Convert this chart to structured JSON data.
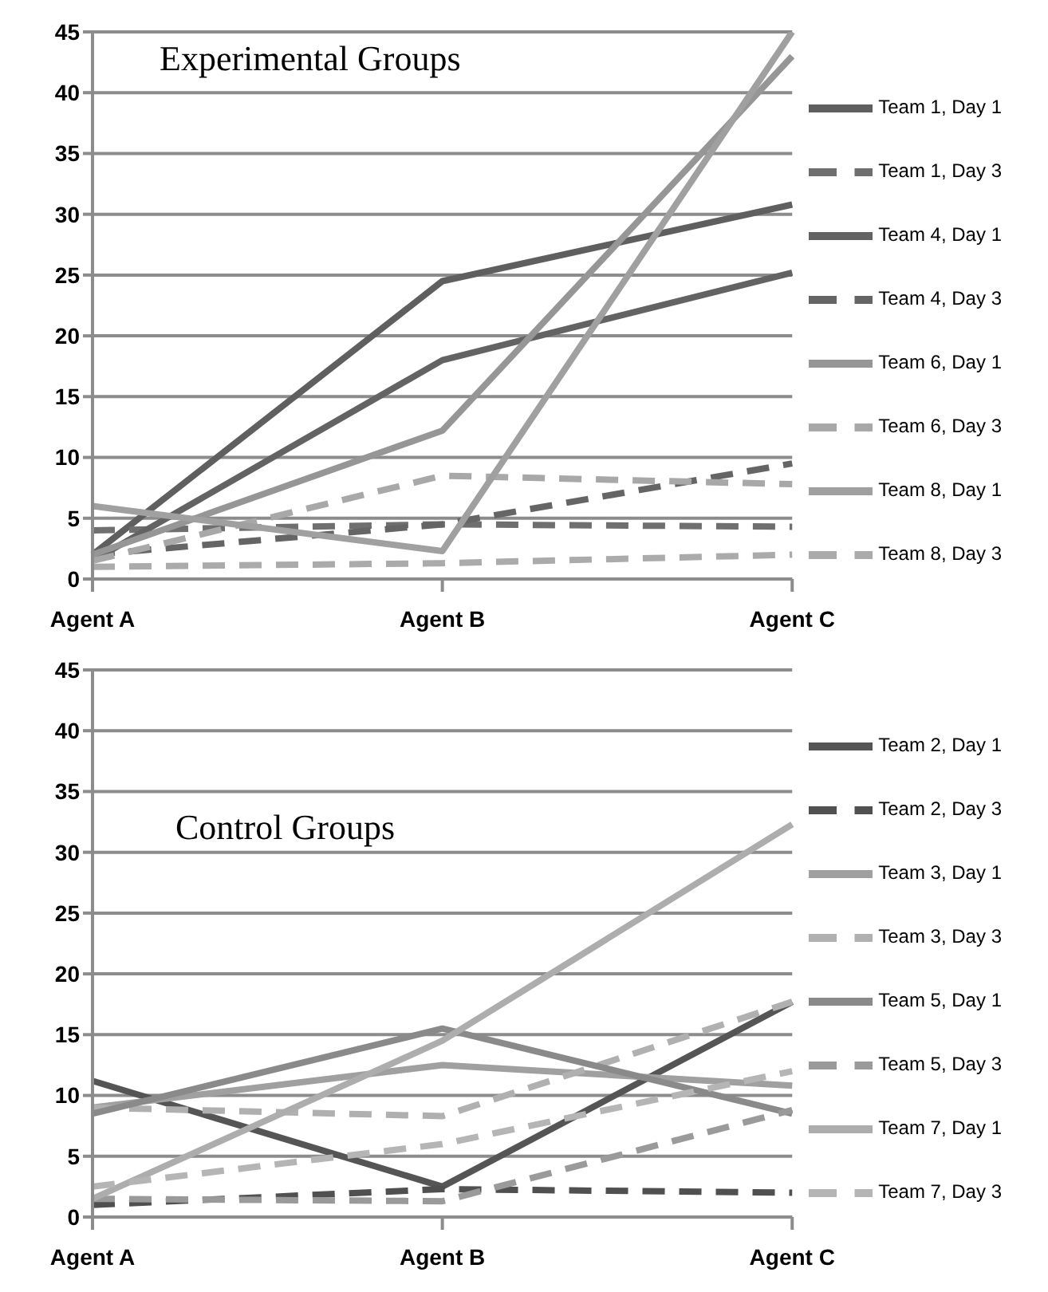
{
  "chart_data": [
    {
      "type": "line",
      "title": "Experimental Groups",
      "categories": [
        "Agent A",
        "Agent B",
        "Agent C"
      ],
      "ylim": [
        0,
        45
      ],
      "yticks": [
        0,
        5,
        10,
        15,
        20,
        25,
        30,
        35,
        40,
        45
      ],
      "grid": "y",
      "legend": "right",
      "marker": "none",
      "series": [
        {
          "name": "Team 1, Day 1",
          "color": "#5f5f5f",
          "line_style": "solid",
          "values": [
            2,
            24.5,
            30.8
          ]
        },
        {
          "name": "Team 1, Day 3",
          "color": "#6f6f6f",
          "line_style": "dashed",
          "values": [
            4,
            4.5,
            4.3
          ]
        },
        {
          "name": "Team 4, Day 1",
          "color": "#636363",
          "line_style": "solid",
          "values": [
            1.5,
            18,
            25.2
          ]
        },
        {
          "name": "Team 4, Day 3",
          "color": "#656565",
          "line_style": "dashed",
          "values": [
            2,
            4.5,
            9.5
          ]
        },
        {
          "name": "Team 6, Day 1",
          "color": "#969696",
          "line_style": "solid",
          "values": [
            2,
            12.2,
            43
          ]
        },
        {
          "name": "Team 6, Day 3",
          "color": "#a8a8a8",
          "line_style": "dashed",
          "values": [
            1.5,
            8.5,
            7.8
          ]
        },
        {
          "name": "Team 8, Day 1",
          "color": "#a0a0a0",
          "line_style": "solid",
          "values": [
            6,
            2.3,
            45
          ]
        },
        {
          "name": "Team 8, Day 3",
          "color": "#ababab",
          "line_style": "dashed",
          "values": [
            1,
            1.3,
            2
          ]
        }
      ]
    },
    {
      "type": "line",
      "title": "Control Groups",
      "categories": [
        "Agent A",
        "Agent B",
        "Agent C"
      ],
      "ylim": [
        0,
        45
      ],
      "yticks": [
        0,
        5,
        10,
        15,
        20,
        25,
        30,
        35,
        40,
        45
      ],
      "grid": "y",
      "legend": "right",
      "marker": "none",
      "series": [
        {
          "name": "Team 2, Day 1",
          "color": "#555555",
          "line_style": "solid",
          "values": [
            11.2,
            2.5,
            17.7
          ]
        },
        {
          "name": "Team 2, Day 3",
          "color": "#505050",
          "line_style": "dashed",
          "values": [
            1,
            2.3,
            2
          ]
        },
        {
          "name": "Team 3, Day 1",
          "color": "#a0a0a0",
          "line_style": "solid",
          "values": [
            9,
            12.5,
            10.8
          ]
        },
        {
          "name": "Team 3, Day 3",
          "color": "#b0b0b0",
          "line_style": "dashed",
          "values": [
            9,
            8.3,
            17.7
          ]
        },
        {
          "name": "Team 5, Day 1",
          "color": "#8a8a8a",
          "line_style": "solid",
          "values": [
            8.5,
            15.5,
            8.5
          ]
        },
        {
          "name": "Team 5, Day 3",
          "color": "#9a9a9a",
          "line_style": "dashed",
          "values": [
            1.5,
            1.3,
            8.8
          ]
        },
        {
          "name": "Team 7, Day 1",
          "color": "#adadad",
          "line_style": "solid",
          "values": [
            1.5,
            14.5,
            32.3
          ]
        },
        {
          "name": "Team 7, Day 3",
          "color": "#b5b5b5",
          "line_style": "dashed",
          "values": [
            2.5,
            6,
            12
          ]
        }
      ]
    }
  ]
}
